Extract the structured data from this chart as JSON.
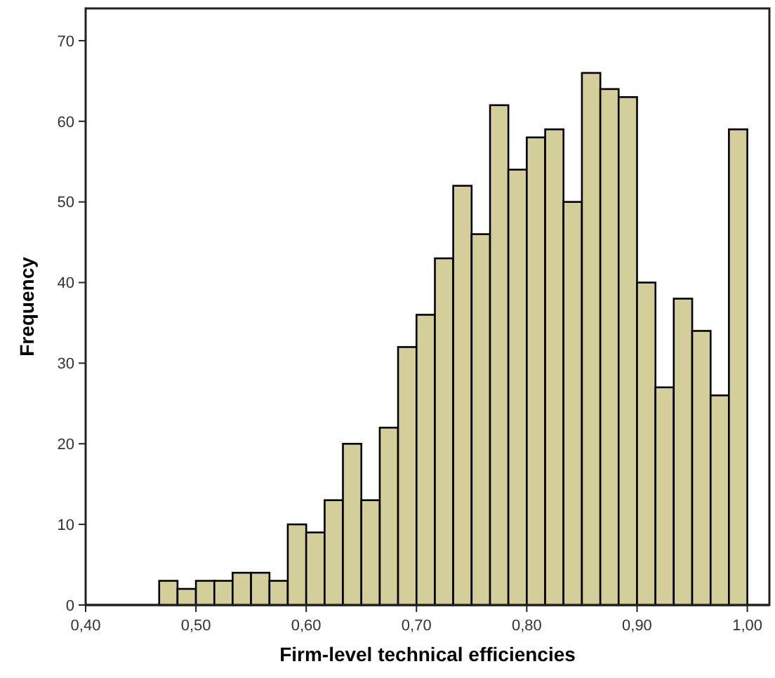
{
  "chart_data": {
    "type": "histogram",
    "xlabel": "Firm-level technical efficiencies",
    "ylabel": "Frequency",
    "bins": [
      0.4667,
      0.4833,
      0.5,
      0.5167,
      0.5333,
      0.55,
      0.5667,
      0.5833,
      0.6,
      0.6167,
      0.6333,
      0.65,
      0.6667,
      0.6833,
      0.7,
      0.7167,
      0.7333,
      0.75,
      0.7667,
      0.7833,
      0.8,
      0.8167,
      0.8333,
      0.85,
      0.8667,
      0.8833,
      0.9,
      0.9167,
      0.9333,
      0.95,
      0.9667,
      0.9833,
      1.0
    ],
    "values": [
      3,
      2,
      3,
      3,
      4,
      4,
      3,
      10,
      9,
      13,
      20,
      13,
      22,
      32,
      36,
      43,
      52,
      46,
      62,
      54,
      58,
      59,
      50,
      66,
      64,
      63,
      40,
      27,
      38,
      34,
      26,
      59
    ],
    "color": "#d4cf9a",
    "xlim": [
      0.4,
      1.02
    ],
    "ylim": [
      0,
      74
    ],
    "xticks": [
      {
        "value": 0.4,
        "label": "0,40"
      },
      {
        "value": 0.5,
        "label": "0,50"
      },
      {
        "value": 0.6,
        "label": "0,60"
      },
      {
        "value": 0.7,
        "label": "0,70"
      },
      {
        "value": 0.8,
        "label": "0,80"
      },
      {
        "value": 0.9,
        "label": "0,90"
      },
      {
        "value": 1.0,
        "label": "1,00"
      }
    ],
    "yticks": [
      0,
      10,
      20,
      30,
      40,
      50,
      60,
      70
    ],
    "grid": false
  }
}
